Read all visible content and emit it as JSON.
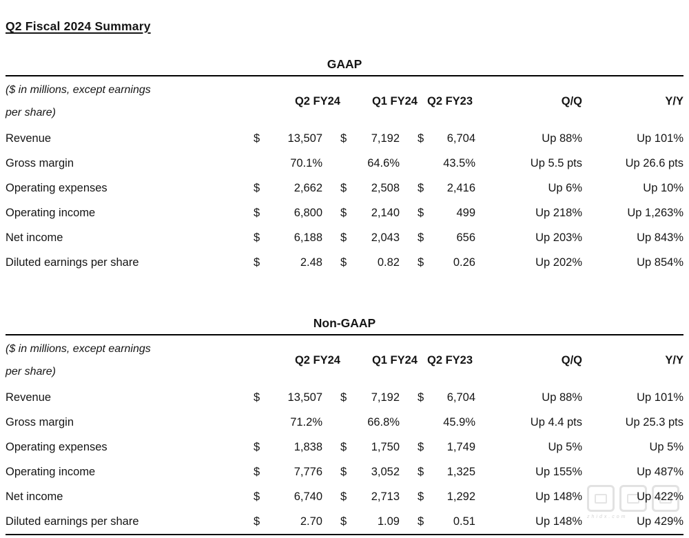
{
  "page": {
    "title": "Q2 Fiscal 2024 Summary",
    "watermark": {
      "small_text": "zhidx.com"
    }
  },
  "tables": [
    {
      "heading": "GAAP",
      "note_line1": "($ in millions, except earnings",
      "note_line2": "per share)",
      "columns": [
        "Q2 FY24",
        "Q1 FY24",
        "Q2 FY23",
        "Q/Q",
        "Y/Y"
      ],
      "rows": [
        {
          "label": "Revenue",
          "d1": "$",
          "v1": "13,507",
          "d2": "$",
          "v2": "7,192",
          "d3": "$",
          "v3": "6,704",
          "qq": "Up 88%",
          "yy": "Up 101%"
        },
        {
          "label": "Gross margin",
          "d1": "",
          "v1": "70.1%",
          "d2": "",
          "v2": "64.6%",
          "d3": "",
          "v3": "43.5%",
          "qq": "Up 5.5 pts",
          "yy": "Up 26.6 pts"
        },
        {
          "label": "Operating expenses",
          "d1": "$",
          "v1": "2,662",
          "d2": "$",
          "v2": "2,508",
          "d3": "$",
          "v3": "2,416",
          "qq": "Up 6%",
          "yy": "Up 10%"
        },
        {
          "label": "Operating income",
          "d1": "$",
          "v1": "6,800",
          "d2": "$",
          "v2": "2,140",
          "d3": "$",
          "v3": "499",
          "qq": "Up 218%",
          "yy": "Up 1,263%"
        },
        {
          "label": "Net income",
          "d1": "$",
          "v1": "6,188",
          "d2": "$",
          "v2": "2,043",
          "d3": "$",
          "v3": "656",
          "qq": "Up 203%",
          "yy": "Up 843%"
        },
        {
          "label": "Diluted earnings per share",
          "d1": "$",
          "v1": "2.48",
          "d2": "$",
          "v2": "0.82",
          "d3": "$",
          "v3": "0.26",
          "qq": "Up 202%",
          "yy": "Up 854%"
        }
      ]
    },
    {
      "heading": "Non-GAAP",
      "note_line1": "($ in millions, except earnings",
      "note_line2": "per share)",
      "columns": [
        "Q2 FY24",
        "Q1 FY24",
        "Q2 FY23",
        "Q/Q",
        "Y/Y"
      ],
      "rows": [
        {
          "label": "Revenue",
          "d1": "$",
          "v1": "13,507",
          "d2": "$",
          "v2": "7,192",
          "d3": "$",
          "v3": "6,704",
          "qq": "Up 88%",
          "yy": "Up 101%"
        },
        {
          "label": "Gross margin",
          "d1": "",
          "v1": "71.2%",
          "d2": "",
          "v2": "66.8%",
          "d3": "",
          "v3": "45.9%",
          "qq": "Up 4.4 pts",
          "yy": "Up 25.3 pts"
        },
        {
          "label": "Operating expenses",
          "d1": "$",
          "v1": "1,838",
          "d2": "$",
          "v2": "1,750",
          "d3": "$",
          "v3": "1,749",
          "qq": "Up 5%",
          "yy": "Up 5%"
        },
        {
          "label": "Operating income",
          "d1": "$",
          "v1": "7,776",
          "d2": "$",
          "v2": "3,052",
          "d3": "$",
          "v3": "1,325",
          "qq": "Up 155%",
          "yy": "Up 487%"
        },
        {
          "label": "Net income",
          "d1": "$",
          "v1": "6,740",
          "d2": "$",
          "v2": "2,713",
          "d3": "$",
          "v3": "1,292",
          "qq": "Up 148%",
          "yy": "Up 422%"
        },
        {
          "label": "Diluted earnings per share",
          "d1": "$",
          "v1": "2.70",
          "d2": "$",
          "v2": "1.09",
          "d3": "$",
          "v3": "0.51",
          "qq": "Up 148%",
          "yy": "Up 429%"
        }
      ]
    }
  ]
}
